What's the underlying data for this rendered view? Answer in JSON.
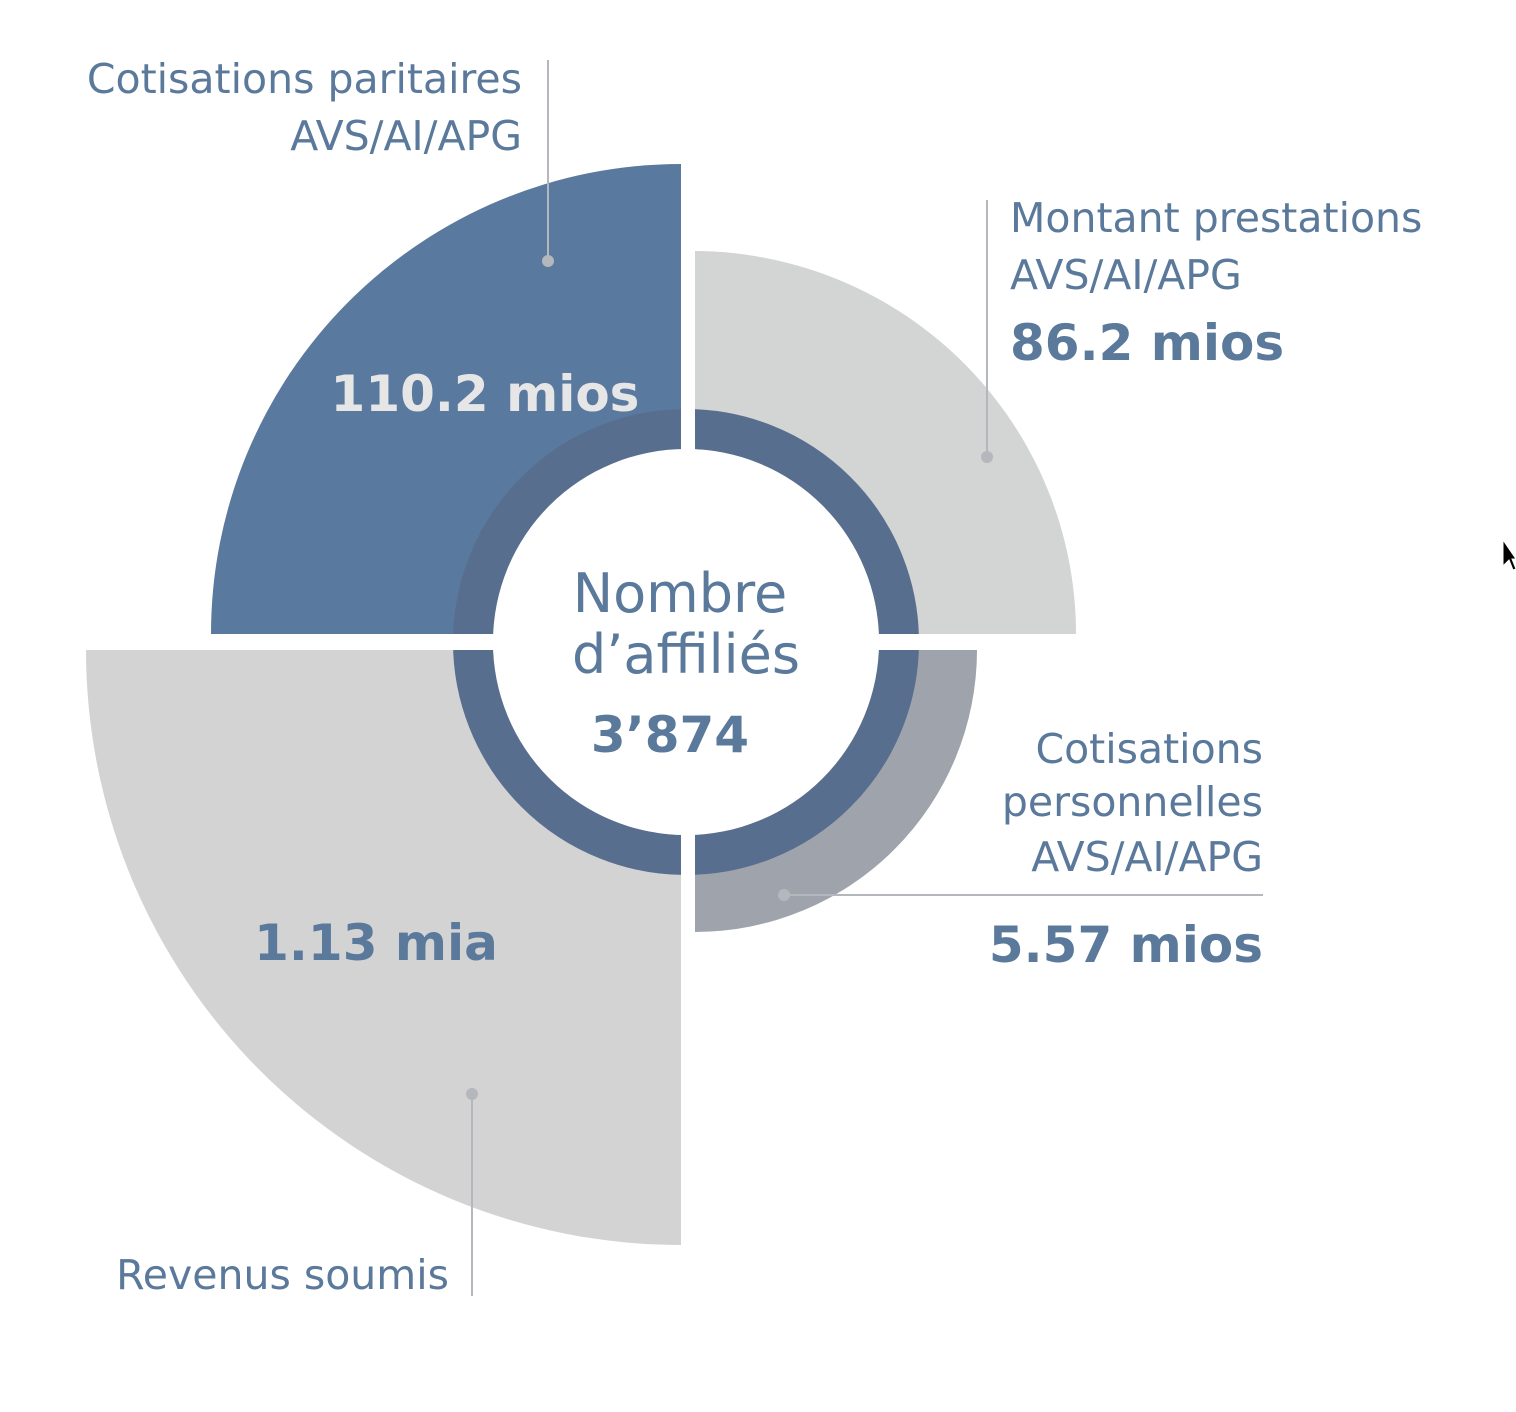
{
  "center": {
    "title_line1": "Nombre",
    "title_line2": "d’affiliés",
    "value": "3’874"
  },
  "segments": [
    {
      "id": "cotisations-paritaires",
      "label_lines": [
        "Cotisations paritaires",
        "AVS/AI/APG"
      ],
      "value": "110.2 mios",
      "color": "#5a799e"
    },
    {
      "id": "montant-prestations",
      "label_lines": [
        "Montant prestations",
        "AVS/AI/APG"
      ],
      "value": "86.2 mios",
      "color": "#d3d4d4"
    },
    {
      "id": "cotisations-personnelles",
      "label_lines": [
        "Cotisations",
        "personnelles",
        "AVS/AI/APG"
      ],
      "value": "5.57 mios",
      "color": "#9fa4ac"
    },
    {
      "id": "revenus-soumis",
      "label_lines": [
        "Revenus soumis"
      ],
      "value": "1.13 mia",
      "color": "#d3d3d3"
    }
  ],
  "colors": {
    "ring": "#586e8e",
    "text": "#5a799b",
    "light_text": "#e6e6e6",
    "leader": "#b4b7bb"
  }
}
